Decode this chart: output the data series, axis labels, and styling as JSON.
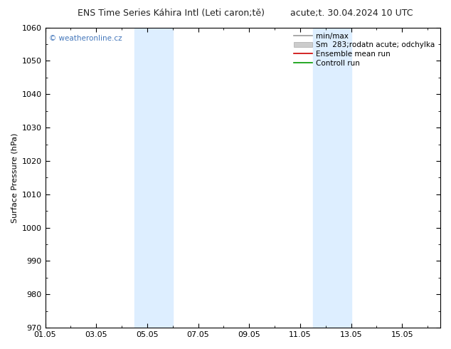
{
  "title_left": "ENS Time Series Káhira Intl (Leti caron;tě)",
  "title_right": "acute;t. 30.04.2024 10 UTC",
  "ylabel": "Surface Pressure (hPa)",
  "ylim": [
    970,
    1060
  ],
  "yticks": [
    970,
    980,
    990,
    1000,
    1010,
    1020,
    1030,
    1040,
    1050,
    1060
  ],
  "xtick_labels": [
    "01.05",
    "03.05",
    "05.05",
    "07.05",
    "09.05",
    "11.05",
    "13.05",
    "15.05"
  ],
  "xtick_positions": [
    0,
    2,
    4,
    6,
    8,
    10,
    12,
    14
  ],
  "xlim": [
    0,
    15.5
  ],
  "shade_bands": [
    {
      "x_start": 3.5,
      "x_end": 5.0
    },
    {
      "x_start": 10.5,
      "x_end": 12.0
    }
  ],
  "shade_color": "#ddeeff",
  "background_color": "#ffffff",
  "watermark": "© weatheronline.cz",
  "watermark_color": "#4477bb",
  "legend_items": [
    {
      "label": "min/max",
      "color": "#999999",
      "lw": 1.2,
      "type": "line"
    },
    {
      "label": "Sm  283;rodatn acute; odchylka",
      "color": "#cccccc",
      "lw": 6,
      "type": "patch"
    },
    {
      "label": "Ensemble mean run",
      "color": "#cc0000",
      "lw": 1.2,
      "type": "line"
    },
    {
      "label": "Controll run",
      "color": "#009900",
      "lw": 1.2,
      "type": "line"
    }
  ],
  "title_fontsize": 9,
  "axis_label_fontsize": 8,
  "tick_fontsize": 8,
  "legend_fontsize": 7.5,
  "watermark_fontsize": 7.5
}
